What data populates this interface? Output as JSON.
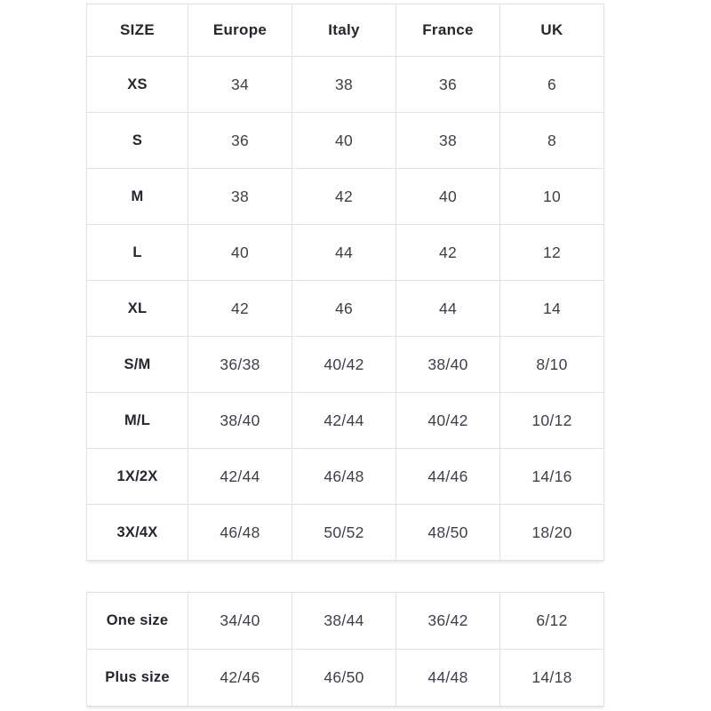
{
  "chart_data": [
    {
      "type": "table",
      "columns": [
        "SIZE",
        "Europe",
        "Italy",
        "France",
        "UK"
      ],
      "rows": [
        {
          "size": "XS",
          "values": [
            "34",
            "38",
            "36",
            "6"
          ]
        },
        {
          "size": "S",
          "values": [
            "36",
            "40",
            "38",
            "8"
          ]
        },
        {
          "size": "M",
          "values": [
            "38",
            "42",
            "40",
            "10"
          ]
        },
        {
          "size": "L",
          "values": [
            "40",
            "44",
            "42",
            "12"
          ]
        },
        {
          "size": "XL",
          "values": [
            "42",
            "46",
            "44",
            "14"
          ]
        },
        {
          "size": "S/M",
          "values": [
            "36/38",
            "40/42",
            "38/40",
            "8/10"
          ]
        },
        {
          "size": "M/L",
          "values": [
            "38/40",
            "42/44",
            "40/42",
            "10/12"
          ]
        },
        {
          "size": "1X/2X",
          "values": [
            "42/44",
            "46/48",
            "44/46",
            "14/16"
          ]
        },
        {
          "size": "3X/4X",
          "values": [
            "46/48",
            "50/52",
            "48/50",
            "18/20"
          ]
        }
      ]
    },
    {
      "type": "table",
      "columns": [
        "SIZE",
        "Europe",
        "Italy",
        "France",
        "UK"
      ],
      "rows": [
        {
          "size": "One size",
          "values": [
            "34/40",
            "38/44",
            "36/42",
            "6/12"
          ]
        },
        {
          "size": "Plus size",
          "values": [
            "42/46",
            "46/50",
            "44/48",
            "14/18"
          ]
        }
      ]
    }
  ],
  "colors": {
    "background": "#ffffff",
    "border": "#e1e1e3",
    "header_text": "#26262e",
    "value_text": "#3f3f49"
  }
}
